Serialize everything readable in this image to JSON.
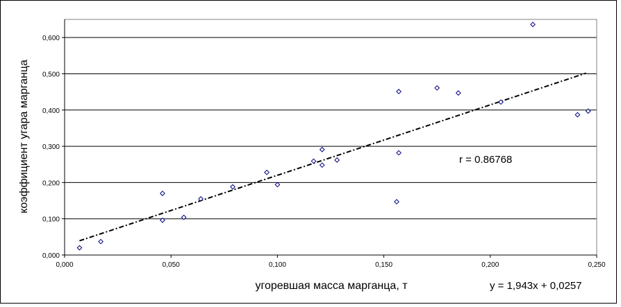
{
  "chart_data": {
    "type": "scatter",
    "title": "",
    "xlabel": "угоревшая масса марганца, т",
    "ylabel": "коэффициент угара марганца",
    "xlim": [
      0,
      0.25
    ],
    "ylim": [
      0,
      0.65
    ],
    "x_ticks": [
      "0,000",
      "0,050",
      "0,100",
      "0,150",
      "0,200",
      "0,250"
    ],
    "y_ticks": [
      "0,000",
      "0,100",
      "0,200",
      "0,300",
      "0,400",
      "0,500",
      "0,600"
    ],
    "grid": "horizontal",
    "marker": "diamond-open",
    "colors": {
      "marker": "#000080",
      "trendline": "#000000",
      "grid": "#000000"
    },
    "points": [
      {
        "x": 0.007,
        "y": 0.02
      },
      {
        "x": 0.017,
        "y": 0.037
      },
      {
        "x": 0.046,
        "y": 0.17
      },
      {
        "x": 0.046,
        "y": 0.096
      },
      {
        "x": 0.056,
        "y": 0.104
      },
      {
        "x": 0.064,
        "y": 0.155
      },
      {
        "x": 0.079,
        "y": 0.188
      },
      {
        "x": 0.095,
        "y": 0.228
      },
      {
        "x": 0.1,
        "y": 0.194
      },
      {
        "x": 0.117,
        "y": 0.259
      },
      {
        "x": 0.121,
        "y": 0.248
      },
      {
        "x": 0.121,
        "y": 0.291
      },
      {
        "x": 0.128,
        "y": 0.262
      },
      {
        "x": 0.156,
        "y": 0.147
      },
      {
        "x": 0.157,
        "y": 0.451
      },
      {
        "x": 0.157,
        "y": 0.282
      },
      {
        "x": 0.175,
        "y": 0.461
      },
      {
        "x": 0.185,
        "y": 0.447
      },
      {
        "x": 0.205,
        "y": 0.422
      },
      {
        "x": 0.22,
        "y": 0.636
      },
      {
        "x": 0.241,
        "y": 0.387
      },
      {
        "x": 0.246,
        "y": 0.397
      }
    ],
    "trendline": {
      "slope": 1.943,
      "intercept": 0.0257,
      "x_range": [
        0.007,
        0.245
      ],
      "style": "dash-dot"
    },
    "annotations": {
      "r_label": "r = 0.86768",
      "equation": "y = 1,943x + 0,0257"
    }
  }
}
